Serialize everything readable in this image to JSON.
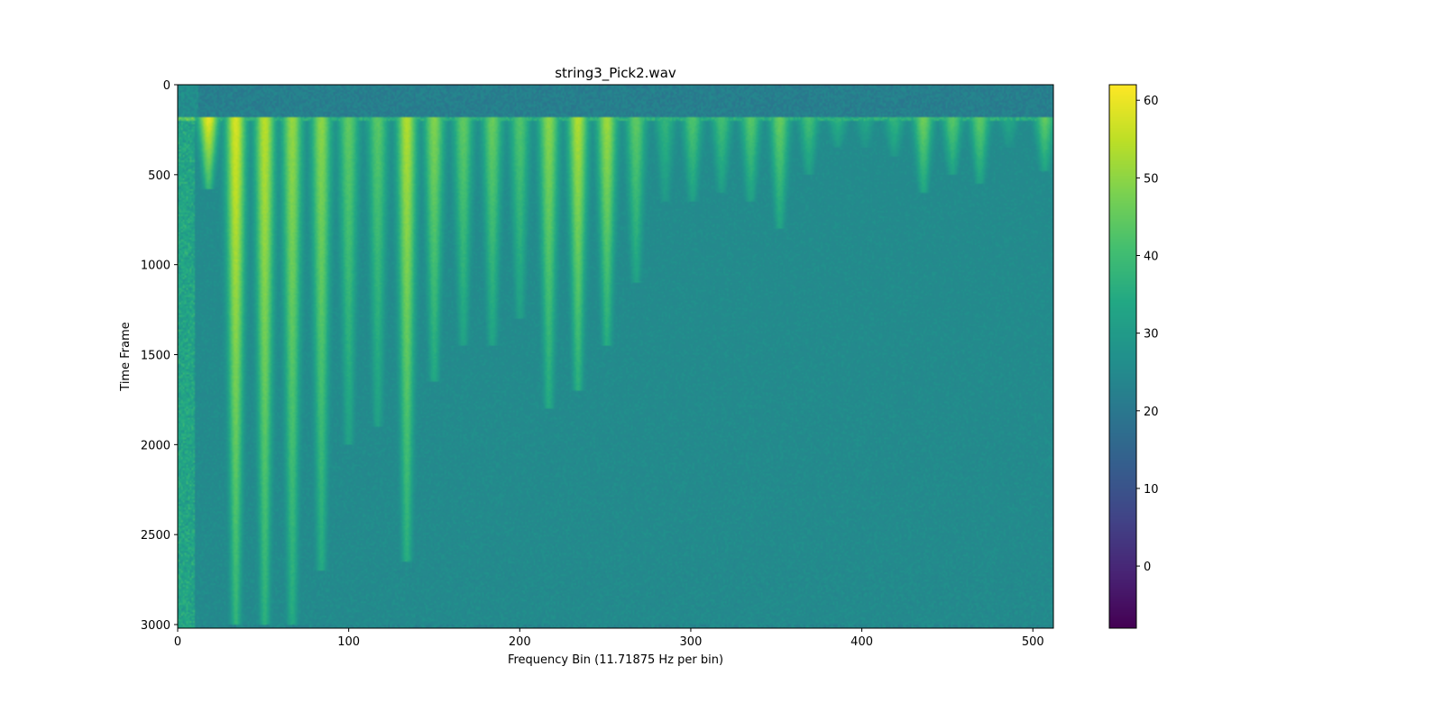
{
  "chart_data": {
    "type": "heatmap",
    "title": "string3_Pick2.wav",
    "xlabel": "Frequency Bin (11.71875 Hz per bin)",
    "ylabel": "Time Frame",
    "xlim": [
      0,
      512
    ],
    "ylim": [
      3020,
      0
    ],
    "x_ticks": [
      0,
      100,
      200,
      300,
      400,
      500
    ],
    "y_ticks": [
      0,
      500,
      1000,
      1500,
      2000,
      2500,
      3000
    ],
    "colorbar": {
      "colormap": "viridis",
      "range": [
        -8,
        62
      ],
      "ticks": [
        0,
        10,
        20,
        30,
        40,
        50,
        60
      ]
    },
    "onset_frame": 185,
    "background_level": 24,
    "pre_onset_level": 22,
    "harmonics": [
      {
        "bin": 18,
        "peak": 60,
        "end_frame": 580
      },
      {
        "bin": 34,
        "peak": 58,
        "end_frame": 3000
      },
      {
        "bin": 51,
        "peak": 55,
        "end_frame": 3000
      },
      {
        "bin": 67,
        "peak": 51,
        "end_frame": 3000
      },
      {
        "bin": 84,
        "peak": 50,
        "end_frame": 2700
      },
      {
        "bin": 100,
        "peak": 45,
        "end_frame": 2000
      },
      {
        "bin": 117,
        "peak": 44,
        "end_frame": 1900
      },
      {
        "bin": 134,
        "peak": 54,
        "end_frame": 2650
      },
      {
        "bin": 150,
        "peak": 49,
        "end_frame": 1650
      },
      {
        "bin": 167,
        "peak": 45,
        "end_frame": 1450
      },
      {
        "bin": 184,
        "peak": 46,
        "end_frame": 1450
      },
      {
        "bin": 200,
        "peak": 43,
        "end_frame": 1300
      },
      {
        "bin": 217,
        "peak": 50,
        "end_frame": 1800
      },
      {
        "bin": 234,
        "peak": 54,
        "end_frame": 1700
      },
      {
        "bin": 251,
        "peak": 52,
        "end_frame": 1450
      },
      {
        "bin": 268,
        "peak": 45,
        "end_frame": 1100
      },
      {
        "bin": 285,
        "peak": 38,
        "end_frame": 650
      },
      {
        "bin": 301,
        "peak": 43,
        "end_frame": 650
      },
      {
        "bin": 318,
        "peak": 41,
        "end_frame": 600
      },
      {
        "bin": 335,
        "peak": 44,
        "end_frame": 650
      },
      {
        "bin": 352,
        "peak": 46,
        "end_frame": 800
      },
      {
        "bin": 369,
        "peak": 41,
        "end_frame": 500
      },
      {
        "bin": 386,
        "peak": 37,
        "end_frame": 350
      },
      {
        "bin": 402,
        "peak": 34,
        "end_frame": 350
      },
      {
        "bin": 419,
        "peak": 38,
        "end_frame": 400
      },
      {
        "bin": 436,
        "peak": 47,
        "end_frame": 600
      },
      {
        "bin": 453,
        "peak": 44,
        "end_frame": 500
      },
      {
        "bin": 469,
        "peak": 45,
        "end_frame": 550
      },
      {
        "bin": 486,
        "peak": 34,
        "end_frame": 350
      },
      {
        "bin": 507,
        "peak": 45,
        "end_frame": 480
      }
    ]
  }
}
